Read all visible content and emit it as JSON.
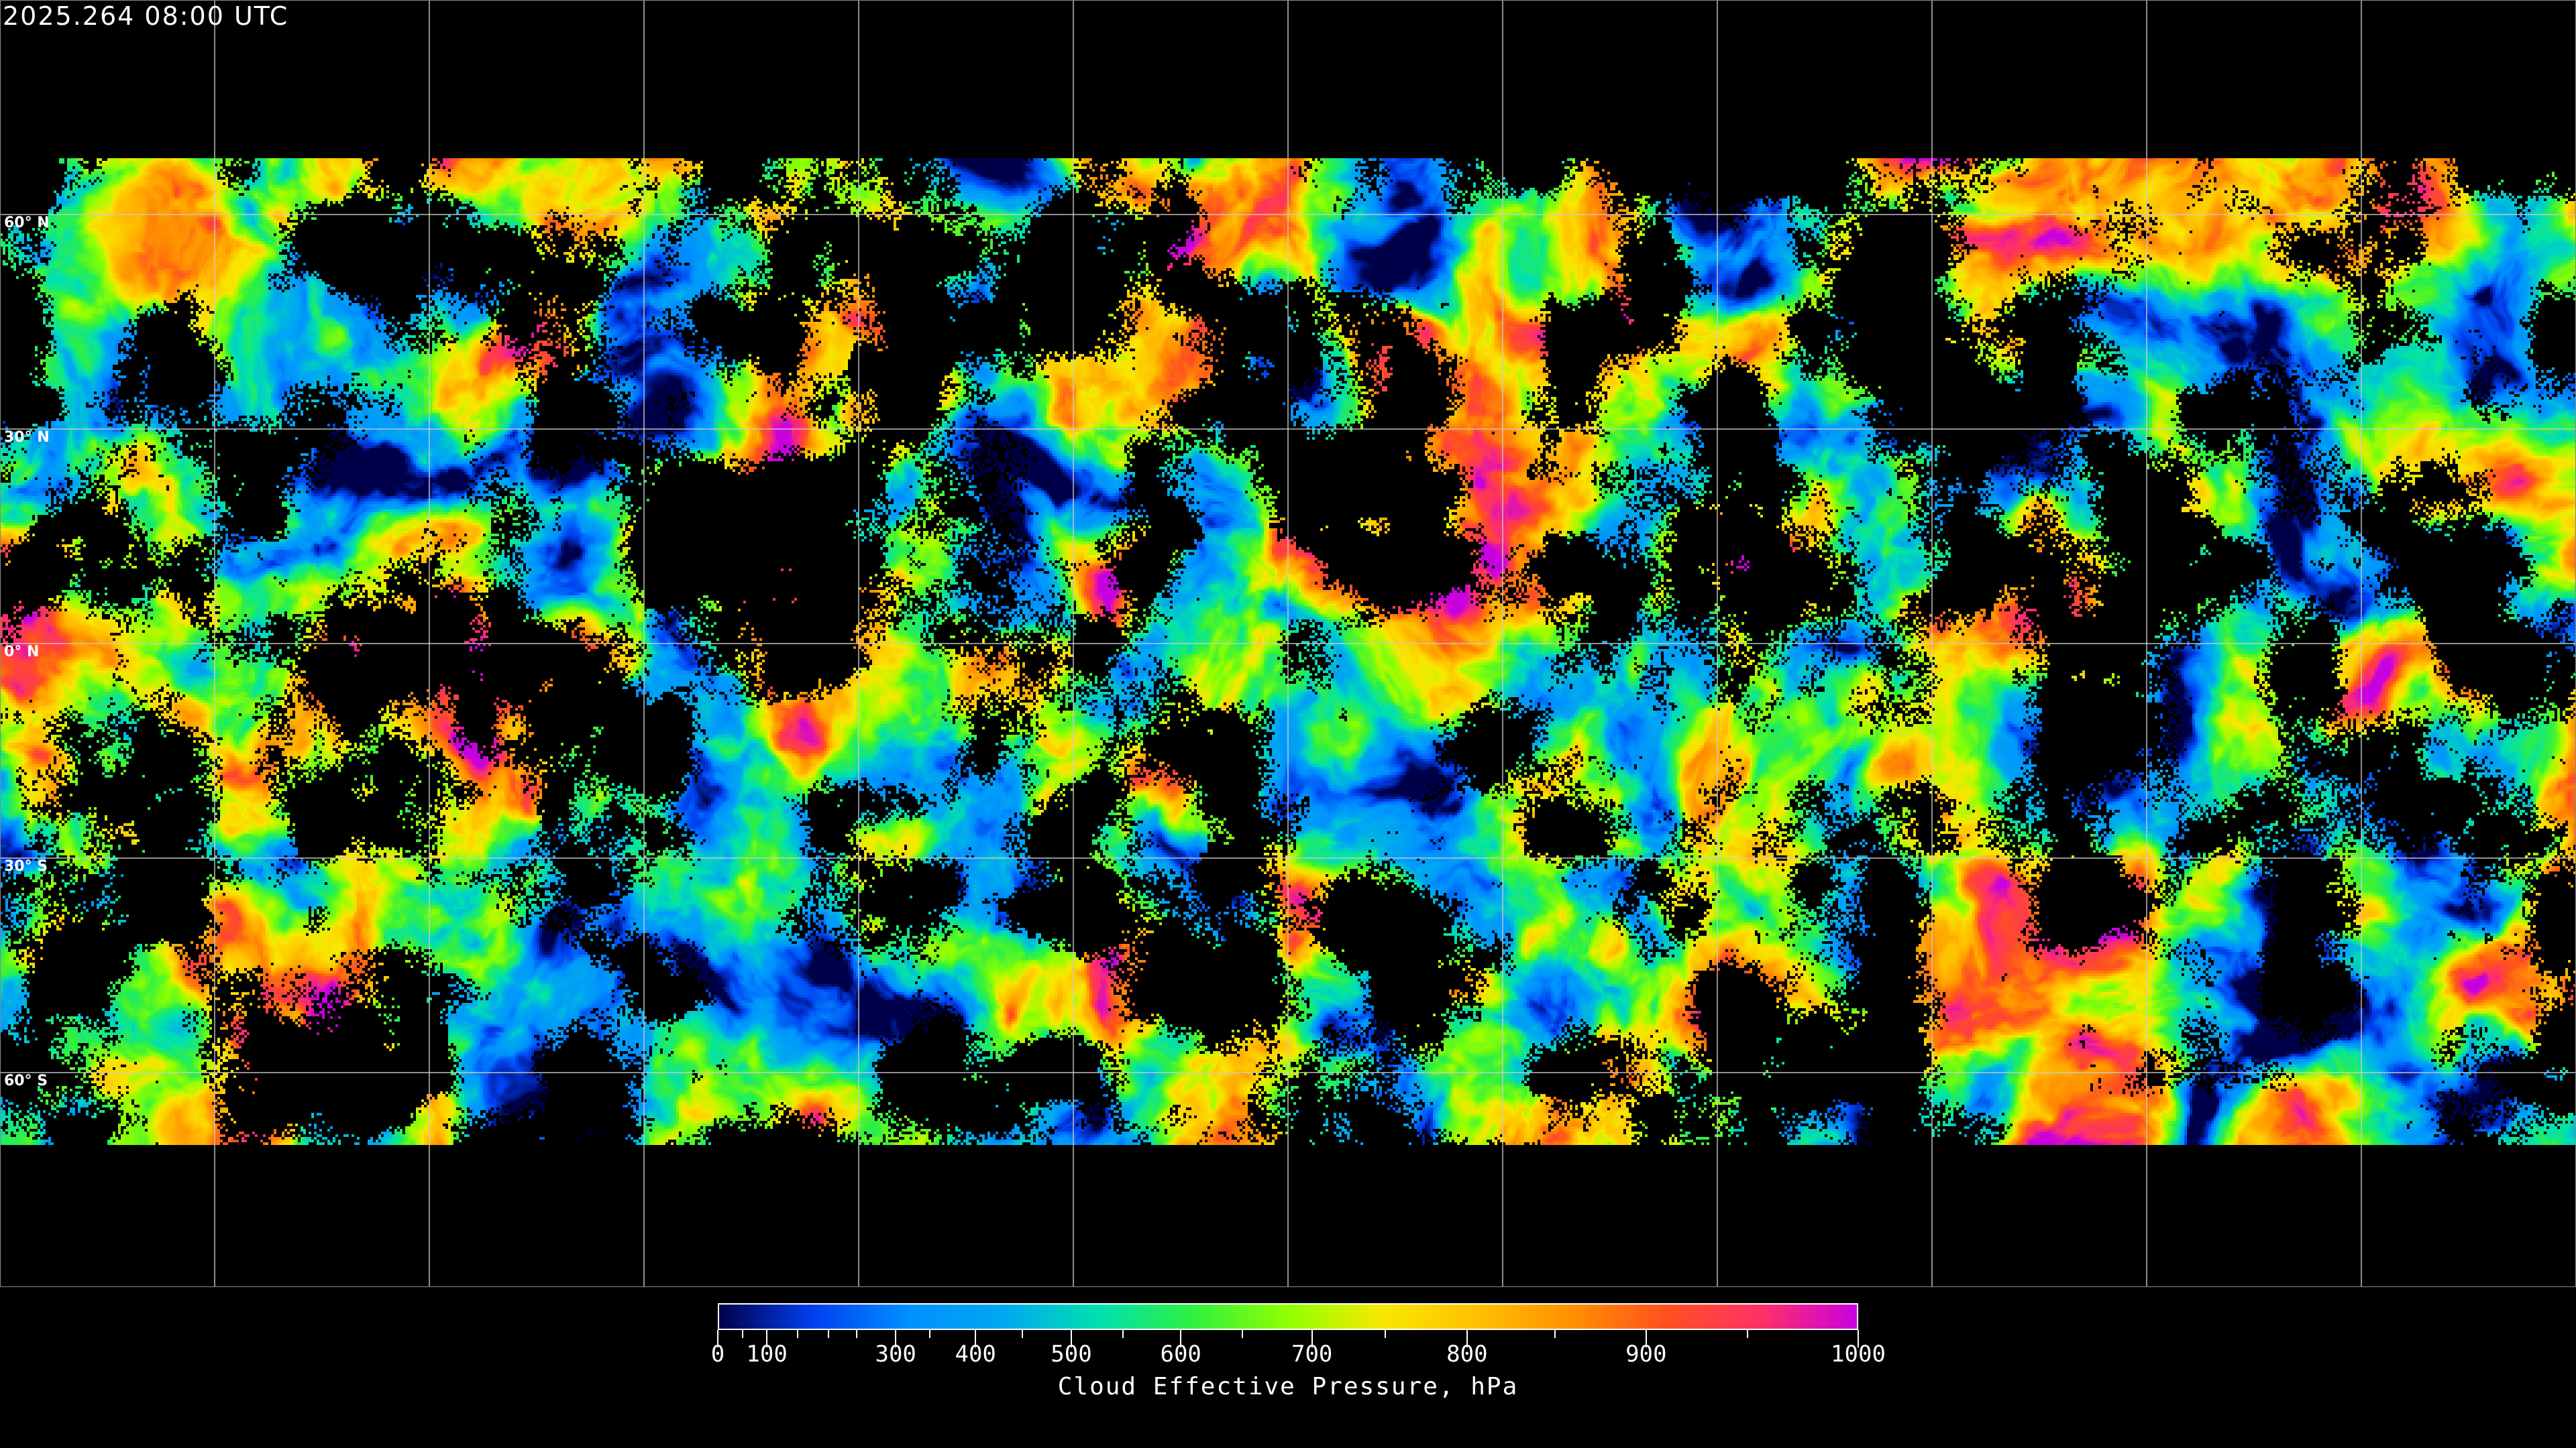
{
  "title": "2025.264 08:00 UTC",
  "map": {
    "projection": "equirectangular",
    "graticule_spacing_deg": 30,
    "lat_labels": [
      "60° N",
      "30° N",
      "0° N",
      "30° S",
      "60° S"
    ],
    "background": "#000000",
    "coastline_color": "#ffffff",
    "grid_color": "#cccccc"
  },
  "colorbar": {
    "label": "Cloud Effective Pressure, hPa",
    "min": 0,
    "max": 1000,
    "tick_labels": [
      "0",
      "100",
      "300",
      "400",
      "500",
      "600",
      "700",
      "800",
      "900",
      "1000"
    ],
    "tick_values": [
      0,
      100,
      300,
      400,
      500,
      600,
      700,
      800,
      900,
      1000
    ],
    "colormap": [
      "#00004a",
      "#0040f0",
      "#0090ff",
      "#00a8f0",
      "#00e0b0",
      "#30f040",
      "#90ff00",
      "#f8e800",
      "#ffc000",
      "#ff9000",
      "#ff5020",
      "#ff3068",
      "#c800e0"
    ]
  }
}
